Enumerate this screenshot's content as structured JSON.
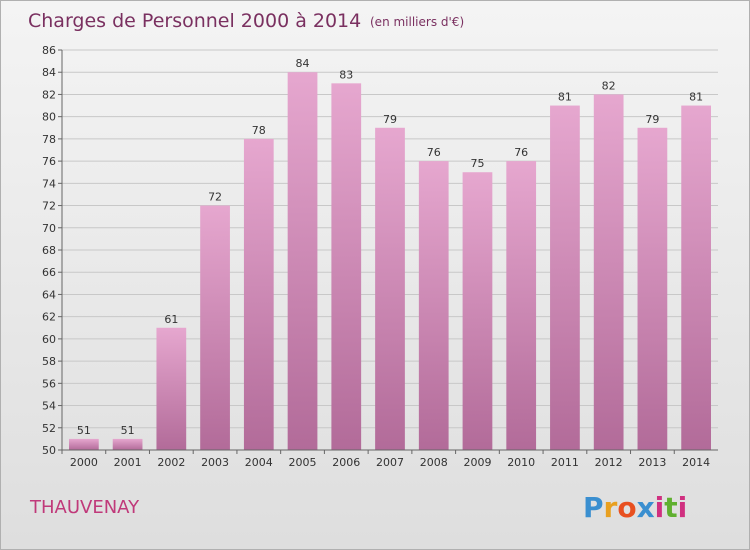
{
  "chart_data": {
    "type": "bar",
    "title": "Charges de Personnel 2000 à 2014",
    "subtitle": "(en milliers d'€)",
    "categories": [
      "2000",
      "2001",
      "2002",
      "2003",
      "2004",
      "2005",
      "2006",
      "2007",
      "2008",
      "2009",
      "2010",
      "2011",
      "2012",
      "2013",
      "2014"
    ],
    "values": [
      51,
      51,
      61,
      72,
      78,
      84,
      83,
      79,
      76,
      75,
      76,
      81,
      82,
      79,
      81
    ],
    "ylim": [
      50,
      86
    ],
    "ytick_step": 2,
    "grid": true,
    "bar_color": "#c777a8"
  },
  "commune": "THAUVENAY",
  "logo": {
    "letters": [
      "P",
      "r",
      "o",
      "x",
      "i",
      "t",
      "i"
    ],
    "colors": [
      "#3a8fd0",
      "#e8a020",
      "#e85020",
      "#3a8fd0",
      "#d03080",
      "#60b030",
      "#d03080"
    ]
  }
}
